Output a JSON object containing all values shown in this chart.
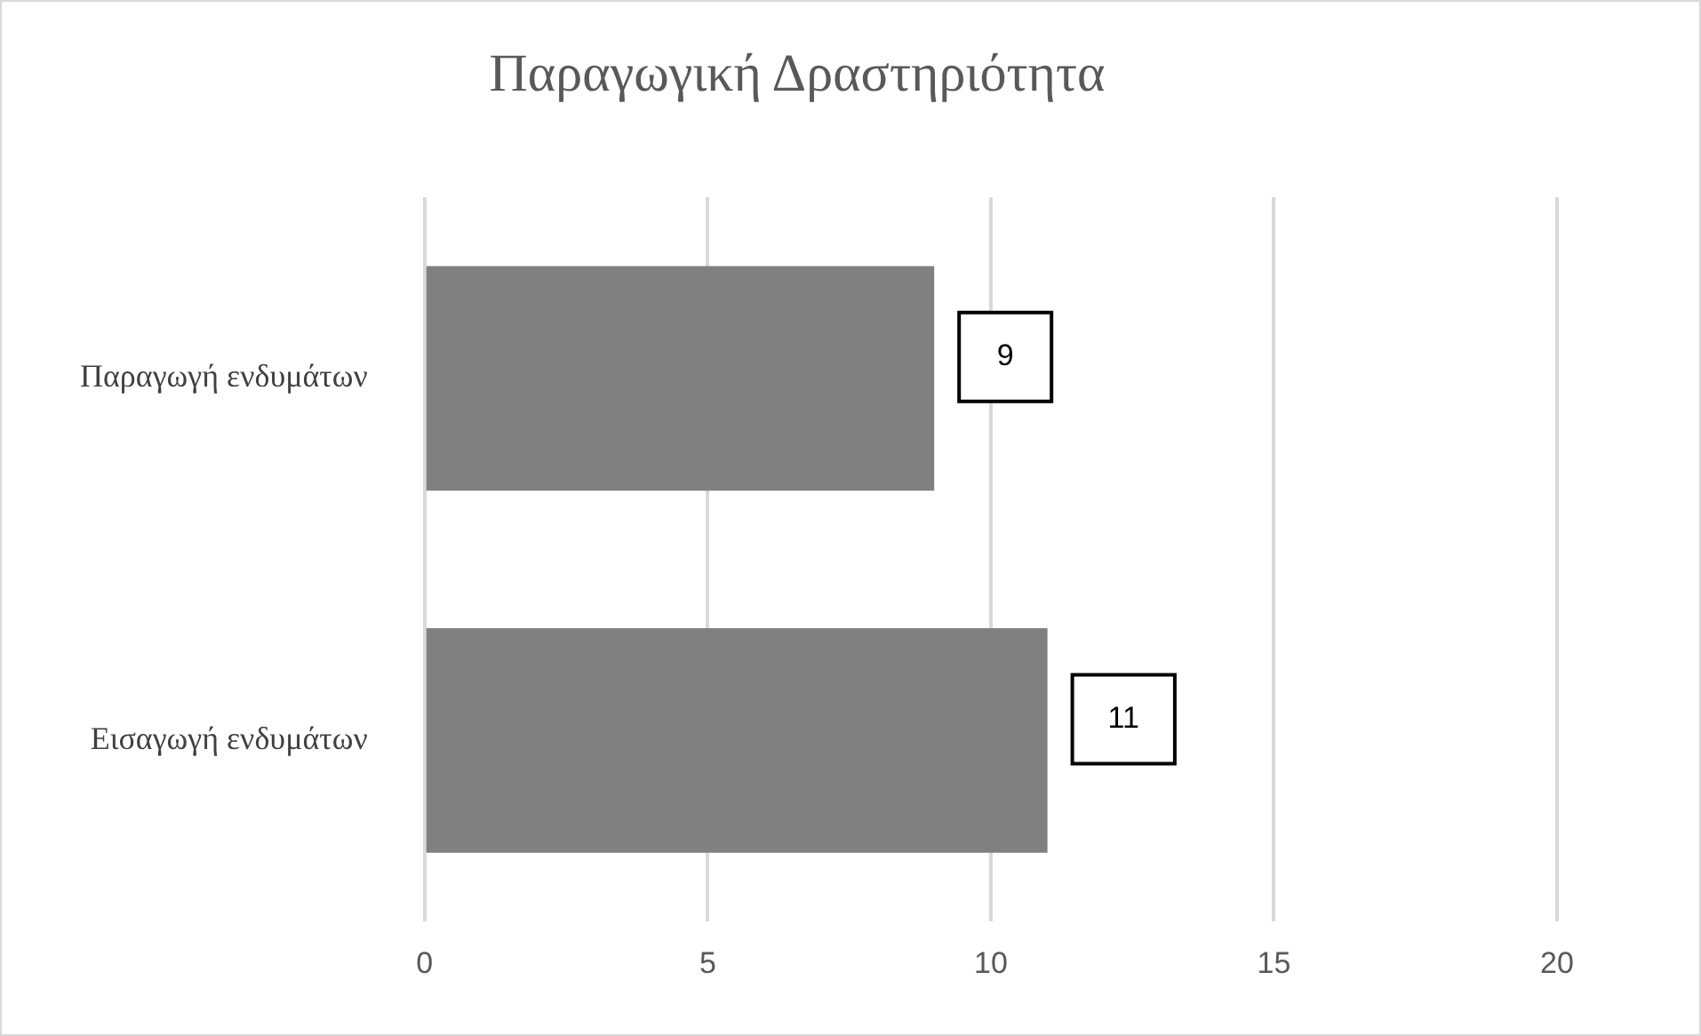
{
  "chart_data": {
    "type": "bar",
    "orientation": "horizontal",
    "title": "Παραγωγική Δραστηριότητα",
    "categories": [
      "Παραγωγή ενδυμάτων",
      "Εισαγωγή ενδυμάτων"
    ],
    "values": [
      9,
      11
    ],
    "color": "#808080",
    "xlim": [
      0,
      20
    ],
    "xticks": [
      0,
      5,
      10,
      15,
      20
    ],
    "grid": "x",
    "data_labels": true
  }
}
